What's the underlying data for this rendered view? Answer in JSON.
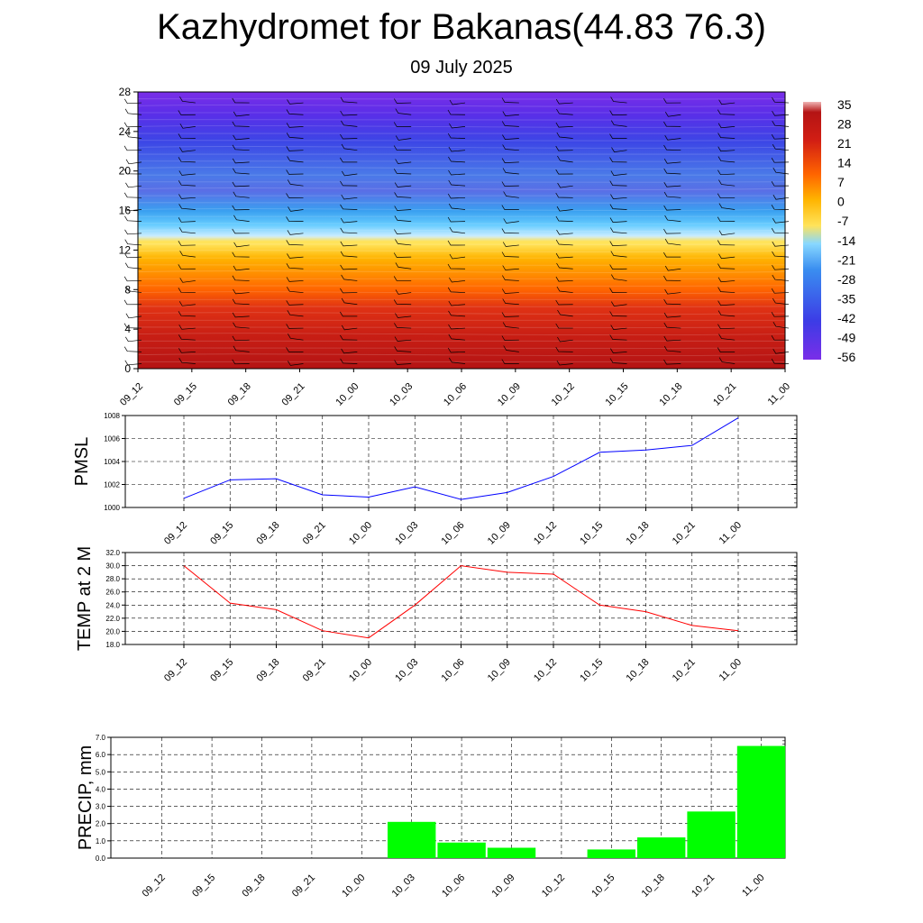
{
  "title": "Kazhydromet for Bakanas(44.83 76.3)",
  "subtitle": "09 July 2025",
  "chart_data": [
    {
      "type": "heatmap",
      "x_labels": [
        "09_12",
        "09_15",
        "09_18",
        "09_21",
        "10_00",
        "10_03",
        "10_06",
        "10_09",
        "10_12",
        "10_15",
        "10_18",
        "10_21",
        "11_00"
      ],
      "y_ticks": [
        0,
        4,
        8,
        12,
        16,
        20,
        24,
        28
      ],
      "ylim": [
        0,
        28
      ],
      "colorbar_labels": [
        "35",
        "28",
        "21",
        "14",
        "7",
        "0",
        "-7",
        "-14",
        "-21",
        "-28",
        "-35",
        "-42",
        "-49",
        "-56"
      ],
      "z_profile": [
        {
          "height": 0,
          "value": 33
        },
        {
          "height": 4,
          "value": 30
        },
        {
          "height": 8,
          "value": 21
        },
        {
          "height": 11,
          "value": 8
        },
        {
          "height": 12.6,
          "value": 0
        },
        {
          "height": 13.2,
          "value": -14
        },
        {
          "height": 15,
          "value": -28
        },
        {
          "height": 18,
          "value": -40
        },
        {
          "height": 22,
          "value": -50
        },
        {
          "height": 25,
          "value": -55
        },
        {
          "height": 28,
          "value": -58
        }
      ],
      "colors": {
        "hot": "#b41414",
        "warm": "#ff6400",
        "mid": "#ffe35a",
        "cold": "#5a6ee6",
        "coldest": "#7a2ee8"
      }
    },
    {
      "type": "line",
      "ylabel": "PMSL",
      "x_labels": [
        "09_12",
        "09_15",
        "09_18",
        "09_21",
        "10_00",
        "10_03",
        "10_06",
        "10_09",
        "10_12",
        "10_15",
        "10_18",
        "10_21",
        "11_00"
      ],
      "y_ticks": [
        "1000",
        "1002",
        "1004",
        "1006",
        "1008"
      ],
      "ylim": [
        1000,
        1008
      ],
      "series": [
        {
          "values": [
            1000.8,
            1002.4,
            1002.5,
            1001.1,
            1000.9,
            1001.8,
            1000.7,
            1001.3,
            1002.7,
            1004.8,
            1005.0,
            1005.4,
            1007.8
          ],
          "color": "#0000ff"
        }
      ]
    },
    {
      "type": "line",
      "ylabel": "TEMP at 2 M",
      "x_labels": [
        "09_12",
        "09_15",
        "09_18",
        "09_21",
        "10_00",
        "10_03",
        "10_06",
        "10_09",
        "10_12",
        "10_15",
        "10_18",
        "10_21",
        "11_00"
      ],
      "y_ticks": [
        "18.0",
        "20.0",
        "22.0",
        "24.0",
        "26.0",
        "28.0",
        "30.0",
        "32.0"
      ],
      "ylim": [
        18,
        32
      ],
      "series": [
        {
          "values": [
            30.0,
            24.3,
            23.3,
            20.1,
            19.0,
            24.0,
            30.0,
            29.0,
            28.7,
            24.0,
            23.0,
            20.9,
            20.1
          ],
          "color": "#ff0000"
        }
      ]
    },
    {
      "type": "bar",
      "ylabel": "PRECIP, mm",
      "categories": [
        "09_12",
        "09_15",
        "09_18",
        "09_21",
        "10_00",
        "10_03",
        "10_06",
        "10_09",
        "10_12",
        "10_15",
        "10_18",
        "10_21",
        "11_00"
      ],
      "y_ticks": [
        "0.0",
        "1.0",
        "2.0",
        "3.0",
        "4.0",
        "5.0",
        "6.0",
        "7.0"
      ],
      "ylim": [
        0,
        7
      ],
      "values": [
        0,
        0,
        0,
        0,
        0,
        2.1,
        0.9,
        0.6,
        0,
        0.5,
        1.2,
        2.7,
        6.5
      ],
      "color": "#00ff00"
    }
  ]
}
